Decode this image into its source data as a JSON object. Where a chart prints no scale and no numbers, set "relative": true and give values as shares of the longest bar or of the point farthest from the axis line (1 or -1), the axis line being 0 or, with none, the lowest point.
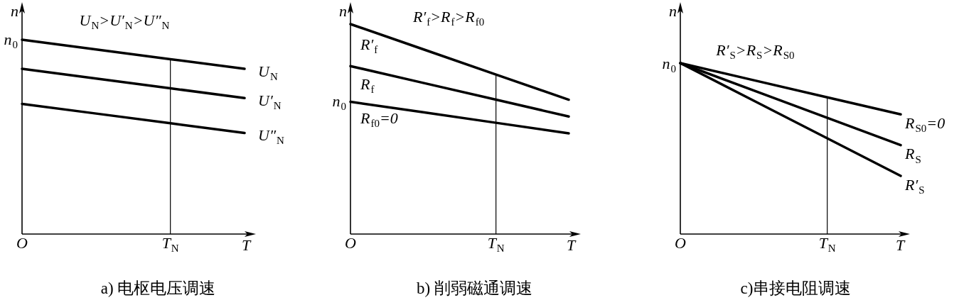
{
  "chart_data": [
    {
      "type": "line",
      "title": "a) 电枢电压调速",
      "xlabel": "T",
      "ylabel": "n",
      "relative": true,
      "categories": [
        "O",
        null,
        "T$_{N}$",
        null
      ],
      "series": [
        {
          "name": "U$_{N}$",
          "color": "#000000",
          "values": [
            1,
            0.95,
            0.9,
            0.85
          ]
        },
        {
          "name": "U′$_{N}$",
          "color": "#000000",
          "values": [
            0.85,
            0.8,
            0.75,
            0.7
          ]
        },
        {
          "name": "U″$_{N}$",
          "color": "#000000",
          "values": [
            0.67,
            0.62,
            0.57,
            0.52
          ]
        }
      ],
      "ref_lines": [
        {
          "axis": "x",
          "value": "T$_{N}$",
          "color": "#000000"
        }
      ],
      "annotations": [
        "U$_{N}$>U′$_{N}$>U″$_{N}$",
        "n$_{0}$"
      ]
    },
    {
      "type": "line",
      "title": "b) 削弱磁通调速",
      "xlabel": "T",
      "ylabel": "n",
      "relative": true,
      "categories": [
        "O",
        null,
        "T$_{N}$",
        null
      ],
      "series": [
        {
          "name": "R′$_{f}$",
          "color": "#000000",
          "values": [
            1,
            0.88,
            0.76,
            0.64
          ]
        },
        {
          "name": "R$_{f}$",
          "color": "#000000",
          "values": [
            0.8,
            0.72,
            0.64,
            0.56
          ]
        },
        {
          "name": "R$_{f0}$=0",
          "color": "#000000",
          "values": [
            0.63,
            0.58,
            0.53,
            0.48
          ]
        }
      ],
      "ref_lines": [
        {
          "axis": "x",
          "value": "T$_{N}$",
          "color": "#000000"
        }
      ],
      "annotations": [
        "R′$_{f}$>R$_{f}$>R$_{f0}$",
        "n$_{0}$"
      ]
    },
    {
      "type": "line",
      "title": "c)串接电阻调速",
      "xlabel": "T",
      "ylabel": "n",
      "relative": true,
      "categories": [
        "O",
        null,
        "T$_{N}$",
        null
      ],
      "series": [
        {
          "name": "R$_{S0}$=0",
          "color": "#000000",
          "values": [
            1,
            0.9,
            0.8,
            0.7
          ]
        },
        {
          "name": "R$_{S}$",
          "color": "#000000",
          "values": [
            1,
            0.84,
            0.68,
            0.52
          ]
        },
        {
          "name": "R′$_{S}$",
          "color": "#000000",
          "values": [
            1,
            0.78,
            0.56,
            0.34
          ]
        }
      ],
      "ref_lines": [
        {
          "axis": "x",
          "value": "T$_{N}$",
          "color": "#000000"
        }
      ],
      "annotations": [
        "R′$_{S}$>R$_{S}$>R$_{S0}$",
        "n$_{0}$"
      ]
    }
  ]
}
